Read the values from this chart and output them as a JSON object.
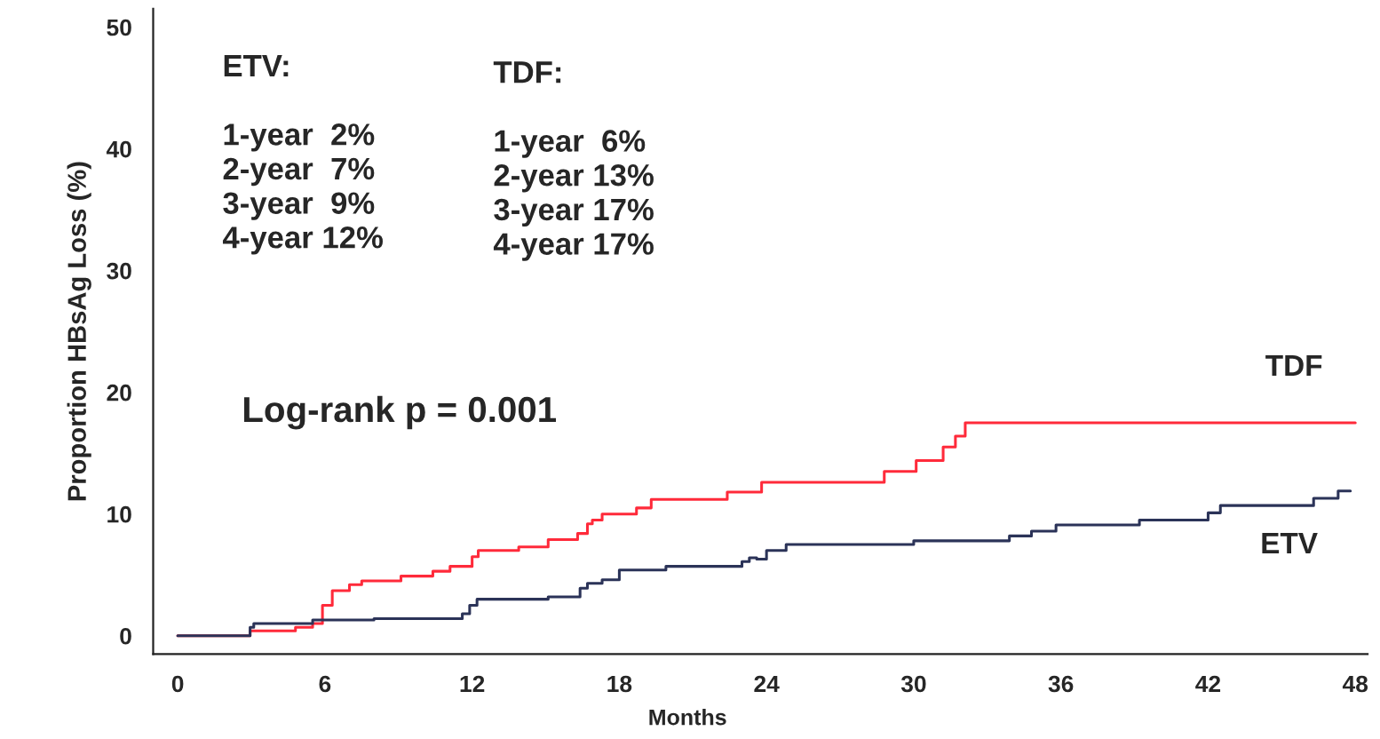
{
  "chart_data": {
    "type": "step",
    "xlabel": "Months",
    "ylabel": "Proportion HBsAg Loss (%)",
    "xlim": [
      -1,
      48.5
    ],
    "ylim": [
      -1.5,
      51.5
    ],
    "xticks": [
      0,
      6,
      12,
      18,
      24,
      30,
      36,
      42,
      48
    ],
    "yticks": [
      0,
      10,
      20,
      30,
      40,
      50
    ],
    "grid": false,
    "legend": false,
    "line_style": "solid",
    "marker": "none",
    "annotations": [
      "ETV:\n\n1-year  2%\n2-year  7%\n3-year  9%\n4-year 12%",
      "TDF:\n\n1-year  6%\n2-year 13%\n3-year 17%\n4-year 17%",
      "Log-rank p = 0.001"
    ],
    "series": [
      {
        "name": "TDF",
        "color": "#ff2a3a",
        "x": [
          0,
          2.95,
          4.8,
          5.5,
          5.9,
          6.3,
          7.0,
          7.5,
          9.1,
          10.4,
          11.1,
          12.0,
          12.25,
          13.9,
          15.1,
          16.3,
          16.7,
          16.9,
          17.3,
          18.7,
          19.3,
          22.4,
          23.8,
          28.8,
          30.1,
          31.2,
          31.7,
          32.1,
          48
        ],
        "values": [
          0,
          0.4,
          0.7,
          1.0,
          2.5,
          3.7,
          4.2,
          4.5,
          4.9,
          5.3,
          5.7,
          6.5,
          7.0,
          7.3,
          7.9,
          8.4,
          9.2,
          9.5,
          10.0,
          10.5,
          11.2,
          11.8,
          12.6,
          13.5,
          14.4,
          15.5,
          16.4,
          17.5,
          17.5
        ]
      },
      {
        "name": "ETV",
        "color": "#2b3358",
        "x": [
          0,
          2.95,
          3.1,
          5.5,
          8.0,
          11.6,
          11.9,
          12.2,
          15.1,
          16.4,
          16.7,
          17.3,
          18.0,
          19.9,
          23.0,
          23.3,
          23.6,
          24.0,
          24.8,
          30.0,
          33.9,
          34.8,
          35.8,
          39.2,
          42.0,
          42.5,
          46.3,
          47.3,
          47.8
        ],
        "values": [
          0,
          0.7,
          1.0,
          1.3,
          1.4,
          1.8,
          2.5,
          3.0,
          3.2,
          3.9,
          4.3,
          4.6,
          5.4,
          5.7,
          6.1,
          6.4,
          6.3,
          7.0,
          7.5,
          7.8,
          8.2,
          8.6,
          9.1,
          9.5,
          10.1,
          10.7,
          11.3,
          11.9,
          11.9
        ]
      }
    ]
  }
}
